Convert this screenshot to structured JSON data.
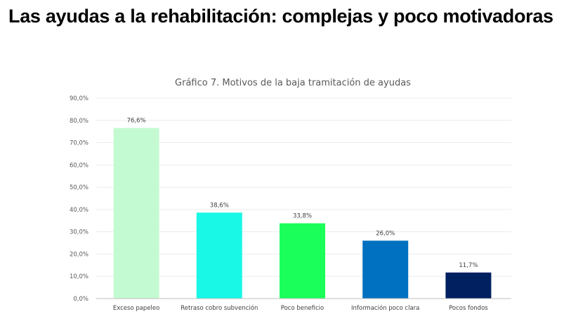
{
  "slide": {
    "headline": "Las ayudas a la rehabilitación: complejas y poco motivadoras"
  },
  "chart_data": {
    "type": "bar",
    "title": "Gráfico 7. Motivos de la baja tramitación de ayudas",
    "xlabel": "",
    "ylabel": "",
    "ylim": [
      0,
      90
    ],
    "grid": true,
    "legend": "none",
    "yticks": [
      0,
      10,
      20,
      30,
      40,
      50,
      60,
      70,
      80,
      90
    ],
    "ytick_labels": [
      "0,0%",
      "10,0%",
      "20,0%",
      "30,0%",
      "40,0%",
      "50,0%",
      "60,0%",
      "70,0%",
      "80,0%",
      "90,0%"
    ],
    "categories": [
      "Exceso papeleo",
      "Retraso cobro subvención",
      "Poco beneficio",
      "Información poco clara",
      "Pocos fondos"
    ],
    "values": [
      76.6,
      38.6,
      33.8,
      26.0,
      11.7
    ],
    "data_labels": [
      "76,6%",
      "38,6%",
      "33,8%",
      "26,0%",
      "11,7%"
    ],
    "colors": [
      "#c4fad1",
      "#19f8e6",
      "#1aff5a",
      "#0070c0",
      "#002060"
    ]
  }
}
